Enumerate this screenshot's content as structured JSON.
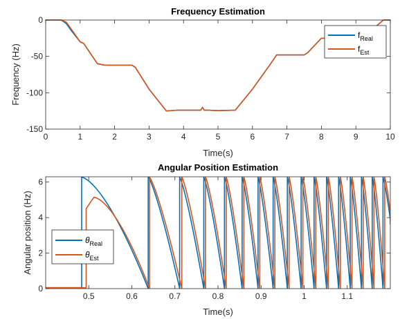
{
  "colors": {
    "real": "#0072BD",
    "est": "#D95319",
    "axis": "#262626"
  },
  "chart_data": [
    {
      "type": "line",
      "title": "Frequency Estimation",
      "xlabel": "Time(s)",
      "ylabel": "Frequency (Hz)",
      "xlim": [
        0,
        10
      ],
      "ylim": [
        -150,
        0
      ],
      "xticks": [
        0,
        1,
        2,
        3,
        4,
        5,
        6,
        7,
        8,
        9,
        10
      ],
      "yticks": [
        -150,
        -100,
        -50,
        0
      ],
      "xtick_labels": [
        "0",
        "1",
        "2",
        "3",
        "4",
        "5",
        "6",
        "7",
        "8",
        "9",
        "10"
      ],
      "ytick_labels": [
        "-150",
        "-100",
        "-50",
        "0"
      ],
      "legend": [
        {
          "main": "f",
          "sub": "Real",
          "color_key": "real"
        },
        {
          "main": "f",
          "sub": "Est",
          "color_key": "est"
        }
      ],
      "legend_position": "top-right",
      "series": [
        {
          "name": "fReal",
          "color_key": "real",
          "x": [
            0,
            0.45,
            0.6,
            0.75,
            1.0,
            1.1,
            1.5,
            1.7,
            2.5,
            2.6,
            3.0,
            3.5,
            3.8,
            4.5,
            4.55,
            4.6,
            4.7,
            5.0,
            5.5,
            6.0,
            6.5,
            6.7,
            7.5,
            7.6,
            8.0,
            9.0,
            9.6,
            9.8,
            10
          ],
          "y": [
            0,
            0,
            -5,
            -15,
            -30,
            -32,
            -60,
            -62,
            -62,
            -65,
            -95,
            -125,
            -124,
            -124,
            -120,
            -124,
            -124,
            -124.5,
            -124,
            -95,
            -62,
            -48,
            -48,
            -45,
            -25,
            -25,
            -8,
            0,
            0
          ]
        },
        {
          "name": "fEst",
          "color_key": "est",
          "x": [
            0,
            0.45,
            0.6,
            0.75,
            1.0,
            1.1,
            1.5,
            1.7,
            2.5,
            2.6,
            3.0,
            3.5,
            3.8,
            4.5,
            4.55,
            4.6,
            4.7,
            5.0,
            5.5,
            6.0,
            6.5,
            6.7,
            7.5,
            7.6,
            8.0,
            9.0,
            9.6,
            9.8,
            10
          ],
          "y": [
            0,
            0,
            -3,
            -13,
            -30,
            -32,
            -60,
            -62,
            -62,
            -65,
            -95,
            -125,
            -124,
            -124,
            -120,
            -124,
            -124,
            -124.5,
            -124,
            -95,
            -62,
            -48,
            -48,
            -45,
            -25,
            -25,
            -8,
            0,
            0
          ]
        }
      ]
    },
    {
      "type": "line",
      "title": "Angular Position Estimation",
      "xlabel": "Time(s)",
      "ylabel": "Angular position (Hz)",
      "xlim": [
        0.4,
        1.2
      ],
      "ylim": [
        0,
        6.3
      ],
      "xticks": [
        0.5,
        0.6,
        0.7,
        0.8,
        0.9,
        1.0,
        1.1
      ],
      "yticks": [
        0,
        2,
        4,
        6
      ],
      "xtick_labels": [
        "0.5",
        "0.6",
        "0.7",
        "0.8",
        "0.9",
        "1",
        "1.1"
      ],
      "ytick_labels": [
        "0",
        "2",
        "4",
        "6"
      ],
      "legend": [
        {
          "main": "θ",
          "sub": "Real",
          "color_key": "real"
        },
        {
          "main": "θ",
          "sub": "Est",
          "color_key": "est"
        }
      ],
      "legend_position": "bottom-left",
      "series": [
        {
          "name": "θReal",
          "color_key": "real",
          "resets_x": [
            0.4835,
            0.638,
            0.711,
            0.767,
            0.815,
            0.856,
            0.893,
            0.928,
            0.961,
            0.993,
            1.023,
            1.052,
            1.08,
            1.107,
            1.133,
            1.158,
            1.183
          ],
          "pre_level": 0.05,
          "peak": 6.28
        },
        {
          "name": "θEst",
          "color_key": "est",
          "resets_x": [
            0.494,
            0.641,
            0.716,
            0.771,
            0.819,
            0.86,
            0.897,
            0.932,
            0.965,
            0.997,
            1.027,
            1.056,
            1.084,
            1.111,
            1.137,
            1.162,
            1.187
          ],
          "pre_level": 0.05,
          "first_jump": 4.5,
          "first_peak": 5.15,
          "peak": 6.28
        }
      ]
    }
  ]
}
